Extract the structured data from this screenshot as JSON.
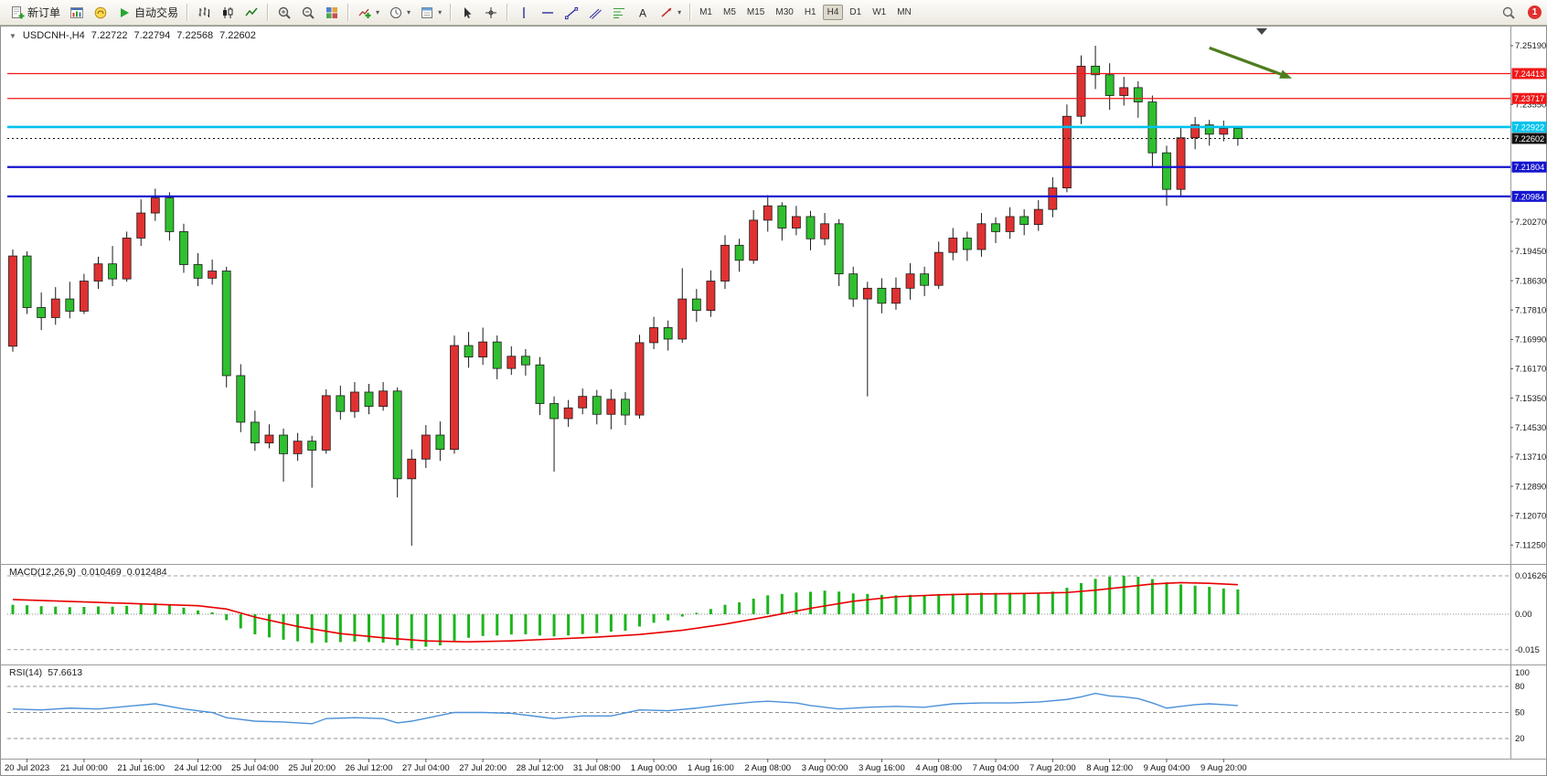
{
  "toolbar": {
    "new_order": "新订单",
    "autotrading": "自动交易",
    "timeframes": [
      "M1",
      "M5",
      "M15",
      "M30",
      "H1",
      "H4",
      "D1",
      "W1",
      "MN"
    ],
    "active_timeframe": "H4",
    "notification_count": "1"
  },
  "chart_header": {
    "symbol": "USDCNH-,H4",
    "open": "7.22722",
    "high": "7.22794",
    "low": "7.22568",
    "close": "7.22602"
  },
  "indicators": {
    "macd": {
      "label": "MACD(12,26,9)",
      "value_main": "0.010469",
      "value_signal": "0.012484",
      "scale": [
        "0.016261",
        "0.00",
        "-0.015"
      ]
    },
    "rsi": {
      "label": "RSI(14)",
      "value": "57.6613",
      "scale": [
        "100",
        "80",
        "50",
        "20"
      ],
      "levels": [
        80,
        50,
        20
      ]
    }
  },
  "chart_data": {
    "type": "candlestick",
    "symbol": "USDCNH",
    "timeframe": "H4",
    "y_range": [
      7.1085,
      7.2565
    ],
    "price_ticks": [
      "7.25190",
      "7.23550",
      "7.20270",
      "7.19450",
      "7.18630",
      "7.17810",
      "7.16990",
      "7.16170",
      "7.15350",
      "7.14530",
      "7.13710",
      "7.12890",
      "7.12070",
      "7.11250"
    ],
    "time_labels": [
      "20 Jul 2023",
      "21 Jul 00:00",
      "21 Jul 16:00",
      "24 Jul 12:00",
      "25 Jul 04:00",
      "25 Jul 20:00",
      "26 Jul 12:00",
      "27 Jul 04:00",
      "27 Jul 20:00",
      "28 Jul 12:00",
      "31 Jul 08:00",
      "1 Aug 00:00",
      "1 Aug 16:00",
      "2 Aug 08:00",
      "3 Aug 00:00",
      "3 Aug 16:00",
      "4 Aug 08:00",
      "7 Aug 04:00",
      "7 Aug 20:00",
      "8 Aug 12:00",
      "9 Aug 04:00",
      "9 Aug 20:00"
    ],
    "label_start_index": 1,
    "label_step": 4,
    "candles": [
      [
        7.168,
        7.195,
        7.1665,
        7.1932
      ],
      [
        7.1932,
        7.1945,
        7.177,
        7.1788
      ],
      [
        7.1788,
        7.183,
        7.1725,
        7.176
      ],
      [
        7.176,
        7.1845,
        7.174,
        7.1812
      ],
      [
        7.1812,
        7.186,
        7.1758,
        7.1778
      ],
      [
        7.1778,
        7.1882,
        7.177,
        7.1862
      ],
      [
        7.1862,
        7.193,
        7.184,
        7.191
      ],
      [
        7.191,
        7.196,
        7.1848,
        7.1868
      ],
      [
        7.1868,
        7.2,
        7.186,
        7.1982
      ],
      [
        7.1982,
        7.209,
        7.196,
        7.2052
      ],
      [
        7.2052,
        7.212,
        7.203,
        7.2094
      ],
      [
        7.2094,
        7.211,
        7.1975,
        7.2
      ],
      [
        7.2,
        7.2022,
        7.1885,
        7.1908
      ],
      [
        7.1908,
        7.194,
        7.1848,
        7.187
      ],
      [
        7.187,
        7.1922,
        7.1852,
        7.189
      ],
      [
        7.189,
        7.1902,
        7.1565,
        7.1598
      ],
      [
        7.1598,
        7.163,
        7.144,
        7.1468
      ],
      [
        7.1468,
        7.15,
        7.1388,
        7.141
      ],
      [
        7.141,
        7.1462,
        7.1395,
        7.1432
      ],
      [
        7.1432,
        7.145,
        7.1302,
        7.138
      ],
      [
        7.138,
        7.1438,
        7.136,
        7.1415
      ],
      [
        7.1415,
        7.143,
        7.1285,
        7.139
      ],
      [
        7.139,
        7.156,
        7.138,
        7.1542
      ],
      [
        7.1542,
        7.157,
        7.1475,
        7.1498
      ],
      [
        7.1498,
        7.158,
        7.148,
        7.1552
      ],
      [
        7.1552,
        7.1575,
        7.149,
        7.1512
      ],
      [
        7.1512,
        7.158,
        7.15,
        7.1555
      ],
      [
        7.1555,
        7.1565,
        7.1258,
        7.131
      ],
      [
        7.131,
        7.1392,
        7.1123,
        7.1365
      ],
      [
        7.1365,
        7.146,
        7.134,
        7.1432
      ],
      [
        7.1432,
        7.147,
        7.136,
        7.1392
      ],
      [
        7.1392,
        7.171,
        7.138,
        7.1682
      ],
      [
        7.1682,
        7.172,
        7.162,
        7.165
      ],
      [
        7.165,
        7.1732,
        7.1628,
        7.1692
      ],
      [
        7.1692,
        7.171,
        7.1588,
        7.1618
      ],
      [
        7.1618,
        7.168,
        7.16,
        7.1652
      ],
      [
        7.1652,
        7.1672,
        7.1598,
        7.1628
      ],
      [
        7.1628,
        7.165,
        7.1488,
        7.152
      ],
      [
        7.152,
        7.154,
        7.133,
        7.1478
      ],
      [
        7.1478,
        7.153,
        7.1455,
        7.1508
      ],
      [
        7.1508,
        7.1562,
        7.149,
        7.154
      ],
      [
        7.154,
        7.1558,
        7.1462,
        7.149
      ],
      [
        7.149,
        7.156,
        7.1448,
        7.1532
      ],
      [
        7.1532,
        7.1552,
        7.146,
        7.1488
      ],
      [
        7.1488,
        7.1712,
        7.1478,
        7.169
      ],
      [
        7.169,
        7.1762,
        7.1672,
        7.1732
      ],
      [
        7.1732,
        7.1752,
        7.1668,
        7.17
      ],
      [
        7.17,
        7.1898,
        7.169,
        7.1812
      ],
      [
        7.1812,
        7.184,
        7.1748,
        7.178
      ],
      [
        7.178,
        7.1892,
        7.1762,
        7.1862
      ],
      [
        7.1862,
        7.199,
        7.184,
        7.1962
      ],
      [
        7.1962,
        7.198,
        7.1888,
        7.192
      ],
      [
        7.192,
        7.206,
        7.191,
        7.2032
      ],
      [
        7.2032,
        7.2102,
        7.2,
        7.2072
      ],
      [
        7.2072,
        7.2082,
        7.1975,
        7.201
      ],
      [
        7.201,
        7.2072,
        7.199,
        7.2042
      ],
      [
        7.2042,
        7.2058,
        7.1948,
        7.198
      ],
      [
        7.198,
        7.2052,
        7.1962,
        7.2022
      ],
      [
        7.2022,
        7.2035,
        7.1848,
        7.1882
      ],
      [
        7.1882,
        7.1902,
        7.179,
        7.1812
      ],
      [
        7.1812,
        7.186,
        7.154,
        7.1842
      ],
      [
        7.1842,
        7.187,
        7.1772,
        7.18
      ],
      [
        7.18,
        7.1872,
        7.1782,
        7.1842
      ],
      [
        7.1842,
        7.1912,
        7.181,
        7.1882
      ],
      [
        7.1882,
        7.1902,
        7.182,
        7.185
      ],
      [
        7.185,
        7.1972,
        7.184,
        7.1942
      ],
      [
        7.1942,
        7.201,
        7.192,
        7.1982
      ],
      [
        7.1982,
        7.2,
        7.1918,
        7.195
      ],
      [
        7.195,
        7.2052,
        7.193,
        7.2022
      ],
      [
        7.2022,
        7.204,
        7.1968,
        7.2
      ],
      [
        7.2,
        7.2068,
        7.198,
        7.2042
      ],
      [
        7.2042,
        7.2062,
        7.199,
        7.202
      ],
      [
        7.202,
        7.2088,
        7.2002,
        7.2062
      ],
      [
        7.2062,
        7.2152,
        7.204,
        7.2122
      ],
      [
        7.2122,
        7.2355,
        7.211,
        7.2322
      ],
      [
        7.2322,
        7.2492,
        7.23,
        7.2462
      ],
      [
        7.2462,
        7.2519,
        7.2398,
        7.2438
      ],
      [
        7.2438,
        7.247,
        7.234,
        7.238
      ],
      [
        7.238,
        7.2432,
        7.2352,
        7.2402
      ],
      [
        7.2402,
        7.242,
        7.2318,
        7.2362
      ],
      [
        7.2362,
        7.238,
        7.2178,
        7.222
      ],
      [
        7.222,
        7.224,
        7.2072,
        7.2118
      ],
      [
        7.2118,
        7.2292,
        7.21,
        7.2262
      ],
      [
        7.2262,
        7.232,
        7.223,
        7.2298
      ],
      [
        7.2298,
        7.2312,
        7.224,
        7.2272
      ],
      [
        7.2272,
        7.231,
        7.2252,
        7.2288
      ],
      [
        7.2288,
        7.2295,
        7.224,
        7.226
      ]
    ],
    "hlines": [
      {
        "price": 7.24413,
        "label": "7.24413",
        "color": "#f01818",
        "width": 1.3
      },
      {
        "price": 7.23717,
        "label": "7.23717",
        "color": "#f01818",
        "width": 1.3
      },
      {
        "price": 7.22922,
        "label": "7.22922",
        "color": "#00c3ee",
        "width": 2.6
      },
      {
        "price": 7.21804,
        "label": "7.21804",
        "color": "#1515cf",
        "width": 2.2
      },
      {
        "price": 7.20984,
        "label": "7.20984",
        "color": "#1515cf",
        "width": 2.2
      }
    ],
    "current_price": {
      "value": 7.22602,
      "label": "7.22602",
      "color": "#111111"
    },
    "arrow_annotation": {
      "from_index": 84,
      "from_price": 7.2513,
      "to_index": 89.8,
      "to_price": 7.2428,
      "color": "#4e7d1e"
    },
    "macd": {
      "scale_max": 0.016261,
      "scale_min": -0.015,
      "hist_color": "#1db51d",
      "signal_color": "#e80000",
      "values": [
        0.004,
        0.0038,
        0.0034,
        0.0032,
        0.003,
        0.0031,
        0.0033,
        0.0032,
        0.0036,
        0.0042,
        0.0046,
        0.004,
        0.0028,
        0.0016,
        0.0008,
        -0.0025,
        -0.006,
        -0.0085,
        -0.0098,
        -0.0108,
        -0.0115,
        -0.0122,
        -0.012,
        -0.0118,
        -0.0116,
        -0.0118,
        -0.012,
        -0.0132,
        -0.0145,
        -0.0138,
        -0.0132,
        -0.0112,
        -0.01,
        -0.0092,
        -0.009,
        -0.0086,
        -0.0085,
        -0.009,
        -0.0094,
        -0.009,
        -0.0084,
        -0.008,
        -0.0074,
        -0.007,
        -0.0052,
        -0.0036,
        -0.0026,
        -0.001,
        0.0006,
        0.0022,
        0.004,
        0.005,
        0.0066,
        0.008,
        0.0086,
        0.0092,
        0.0095,
        0.01,
        0.0096,
        0.0088,
        0.0086,
        0.0082,
        0.008,
        0.0082,
        0.008,
        0.0083,
        0.0087,
        0.0088,
        0.0091,
        0.009,
        0.0091,
        0.009,
        0.0091,
        0.0096,
        0.0112,
        0.0132,
        0.015,
        0.0159,
        0.0163,
        0.0159,
        0.0149,
        0.0135,
        0.0126,
        0.0121,
        0.0116,
        0.0109,
        0.0105
      ],
      "signal_points": [
        [
          0,
          0.0062
        ],
        [
          6,
          0.005
        ],
        [
          10,
          0.0042
        ],
        [
          13,
          0.0036
        ],
        [
          15,
          0.0022
        ],
        [
          17,
          -0.0012
        ],
        [
          20,
          -0.0052
        ],
        [
          23,
          -0.0082
        ],
        [
          26,
          -0.01
        ],
        [
          29,
          -0.0113
        ],
        [
          32,
          -0.0117
        ],
        [
          35,
          -0.0113
        ],
        [
          38,
          -0.0105
        ],
        [
          41,
          -0.0097
        ],
        [
          44,
          -0.0086
        ],
        [
          47,
          -0.0068
        ],
        [
          50,
          -0.0042
        ],
        [
          53,
          -0.001
        ],
        [
          56,
          0.0025
        ],
        [
          59,
          0.0055
        ],
        [
          62,
          0.0074
        ],
        [
          65,
          0.0082
        ],
        [
          68,
          0.0086
        ],
        [
          71,
          0.0088
        ],
        [
          74,
          0.0092
        ],
        [
          76,
          0.0102
        ],
        [
          78,
          0.0115
        ],
        [
          80,
          0.0128
        ],
        [
          82,
          0.0134
        ],
        [
          84,
          0.0131
        ],
        [
          86,
          0.0125
        ]
      ]
    },
    "rsi": {
      "color": "#4a90d9",
      "current": 57.6613,
      "points": [
        [
          0,
          54
        ],
        [
          2,
          53
        ],
        [
          4,
          55
        ],
        [
          6,
          54
        ],
        [
          8,
          57
        ],
        [
          10,
          60
        ],
        [
          12,
          54
        ],
        [
          14,
          50
        ],
        [
          15,
          44
        ],
        [
          17,
          40
        ],
        [
          19,
          39
        ],
        [
          21,
          37
        ],
        [
          22,
          43
        ],
        [
          24,
          44
        ],
        [
          26,
          43
        ],
        [
          27,
          38
        ],
        [
          28,
          40
        ],
        [
          31,
          50
        ],
        [
          33,
          50
        ],
        [
          35,
          49
        ],
        [
          37,
          45
        ],
        [
          38,
          43
        ],
        [
          40,
          46
        ],
        [
          42,
          46
        ],
        [
          44,
          53
        ],
        [
          46,
          52
        ],
        [
          48,
          55
        ],
        [
          50,
          59
        ],
        [
          52,
          62
        ],
        [
          53,
          63
        ],
        [
          55,
          61
        ],
        [
          56,
          58
        ],
        [
          58,
          54
        ],
        [
          60,
          56
        ],
        [
          62,
          57
        ],
        [
          64,
          56
        ],
        [
          66,
          60
        ],
        [
          68,
          61
        ],
        [
          70,
          61
        ],
        [
          72,
          62
        ],
        [
          74,
          65
        ],
        [
          75,
          68
        ],
        [
          76,
          72
        ],
        [
          77,
          69
        ],
        [
          78,
          68
        ],
        [
          79,
          66
        ],
        [
          80,
          61
        ],
        [
          81,
          55
        ],
        [
          82,
          57
        ],
        [
          83,
          59
        ],
        [
          84,
          60
        ],
        [
          85,
          59
        ],
        [
          86,
          58
        ]
      ]
    },
    "colors": {
      "bull": "#e03131",
      "bear": "#2fbf2f",
      "wick": "#1a1a1a",
      "background": "#ffffff"
    }
  }
}
